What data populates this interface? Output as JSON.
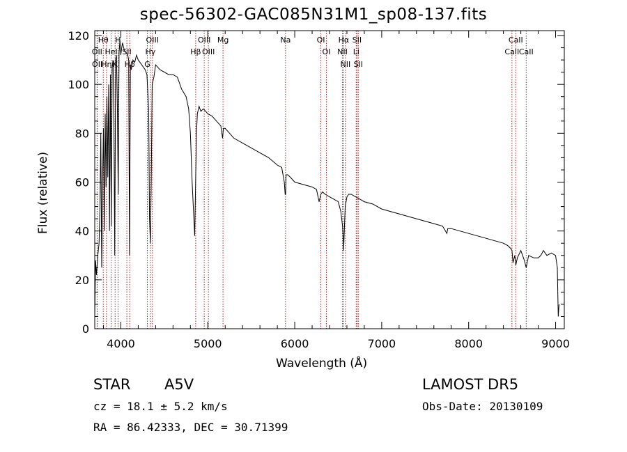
{
  "header": {
    "title": "spec-56302-GAC085N31M1_sp08-137.fits"
  },
  "footer": {
    "object_class": "STAR",
    "subclass": "A5V",
    "survey": "LAMOST DR5",
    "redshift": "cz = 18.1 ± 5.2 km/s",
    "obs_date": "Obs-Date: 20130109",
    "coords": "RA =  86.42333, DEC =  30.71399"
  },
  "colors": {
    "line_markers": "#b22222",
    "spectrum": "#000000",
    "axes": "#000000"
  },
  "chart_data": {
    "type": "line",
    "title": "spec-56302-GAC085N31M1_sp08-137.fits",
    "xlabel": "Wavelength (Å)",
    "ylabel": "Flux (relative)",
    "xlim": [
      3700,
      9100
    ],
    "ylim": [
      0,
      122
    ],
    "xticks": [
      4000,
      5000,
      6000,
      7000,
      8000,
      9000
    ],
    "yticks": [
      0,
      20,
      40,
      60,
      80,
      100,
      120
    ],
    "grid": false,
    "series": [
      {
        "x": [
          3700,
          3710,
          3720,
          3735,
          3750,
          3760,
          3770,
          3780,
          3790,
          3800,
          3810,
          3820,
          3830,
          3840,
          3850,
          3860,
          3870,
          3880,
          3890,
          3900,
          3910,
          3920,
          3930,
          3940,
          3950,
          3960,
          3970,
          3980,
          3990,
          4000,
          4010,
          4020,
          4040,
          4060,
          4080,
          4090,
          4100,
          4110,
          4120,
          4140,
          4160,
          4180,
          4200,
          4220,
          4240,
          4260,
          4280,
          4300,
          4320,
          4330,
          4340,
          4350,
          4360,
          4380,
          4400,
          4450,
          4500,
          4550,
          4600,
          4650,
          4700,
          4750,
          4780,
          4800,
          4820,
          4840,
          4850,
          4860,
          4870,
          4880,
          4900,
          4920,
          4950,
          5000,
          5050,
          5100,
          5150,
          5170,
          5180,
          5200,
          5250,
          5300,
          5400,
          5500,
          5600,
          5700,
          5800,
          5850,
          5880,
          5890,
          5895,
          5900,
          5920,
          5950,
          6000,
          6100,
          6200,
          6250,
          6280,
          6300,
          6320,
          6350,
          6400,
          6450,
          6500,
          6530,
          6550,
          6560,
          6563,
          6570,
          6580,
          6600,
          6620,
          6650,
          6700,
          6750,
          6800,
          6900,
          7000,
          7100,
          7200,
          7300,
          7400,
          7500,
          7600,
          7700,
          7750,
          7760,
          7780,
          7800,
          7900,
          8000,
          8100,
          8200,
          8300,
          8400,
          8450,
          8480,
          8498,
          8510,
          8530,
          8542,
          8560,
          8600,
          8640,
          8662,
          8690,
          8750,
          8800,
          8830,
          8860,
          8900,
          8950,
          9000,
          9020,
          9030,
          9040
        ],
        "y": [
          5,
          28,
          22,
          30,
          35,
          50,
          80,
          25,
          60,
          82,
          40,
          88,
          58,
          95,
          62,
          100,
          40,
          104,
          42,
          107,
          110,
          85,
          30,
          110,
          112,
          90,
          55,
          113,
          118,
          112,
          115,
          117,
          114,
          113,
          112,
          110,
          30,
          108,
          106,
          110,
          109,
          112,
          110,
          109,
          108,
          107,
          106,
          104,
          90,
          45,
          35,
          60,
          100,
          103,
          108,
          106,
          105,
          104,
          104,
          103,
          98,
          95,
          90,
          80,
          60,
          45,
          38,
          60,
          80,
          88,
          91,
          89,
          90,
          88,
          87,
          85,
          83,
          78,
          82,
          82,
          80,
          78,
          76,
          74,
          72,
          70,
          67,
          66,
          60,
          55,
          55,
          63,
          63,
          62,
          60,
          59,
          58,
          57,
          52,
          55,
          56,
          55,
          54,
          53,
          52,
          48,
          42,
          35,
          32,
          40,
          50,
          54,
          55,
          55,
          54,
          53,
          52,
          51,
          49,
          48,
          47,
          46,
          45,
          44,
          43,
          42,
          39,
          41,
          41,
          41,
          40,
          39,
          38,
          37,
          36,
          35,
          34,
          33,
          32,
          27,
          30,
          26,
          29,
          32,
          28,
          25,
          30,
          29,
          29,
          30,
          32,
          30,
          31,
          30,
          25,
          5,
          10
        ]
      }
    ],
    "line_markers": [
      {
        "label": "Hθ",
        "x": 3798
      },
      {
        "label": "OII",
        "x": 3727
      },
      {
        "label": "OII",
        "x": 3729
      },
      {
        "label": "Hη",
        "x": 3835
      },
      {
        "label": "HeI",
        "x": 3889
      },
      {
        "label": "K",
        "x": 3934
      },
      {
        "label": "H",
        "x": 3968
      },
      {
        "label": "SII",
        "x": 4069
      },
      {
        "label": "Hδ",
        "x": 4102
      },
      {
        "label": "OIII",
        "x": 4363
      },
      {
        "label": "Hγ",
        "x": 4340
      },
      {
        "label": "G",
        "x": 4305
      },
      {
        "label": "OIII",
        "x": 4959
      },
      {
        "label": "OIII",
        "x": 5007
      },
      {
        "label": "Hβ",
        "x": 4861
      },
      {
        "label": "Mg",
        "x": 5175
      },
      {
        "label": "Na",
        "x": 5894
      },
      {
        "label": "OI",
        "x": 6300
      },
      {
        "label": "OI",
        "x": 6364
      },
      {
        "label": "Hα",
        "x": 6563
      },
      {
        "label": "NII",
        "x": 6548
      },
      {
        "label": "NII",
        "x": 6583
      },
      {
        "label": "SII",
        "x": 6716
      },
      {
        "label": "Li",
        "x": 6707
      },
      {
        "label": "SII",
        "x": 6731
      },
      {
        "label": "CaII",
        "x": 8542
      },
      {
        "label": "CaII",
        "x": 8498
      },
      {
        "label": "CaII",
        "x": 8662
      }
    ]
  }
}
